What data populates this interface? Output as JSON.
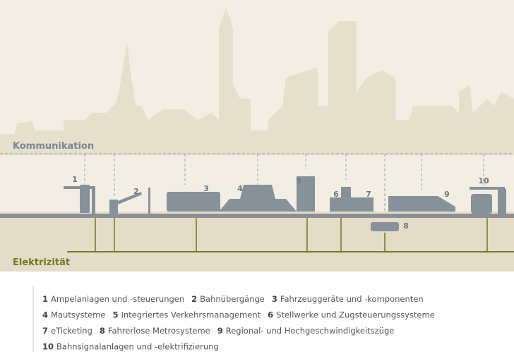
{
  "diagram": {
    "top_label": "Kommunikation",
    "bottom_label": "Elektrizität",
    "markers": [
      1,
      2,
      3,
      4,
      5,
      6,
      7,
      8,
      9,
      10
    ]
  },
  "legend": [
    [
      {
        "number": 1,
        "text": "Ampelanlagen und -steuerungen"
      },
      {
        "number": 2,
        "text": "Bahnübergänge"
      },
      {
        "number": 3,
        "text": "Fahrzeuggeräte und -komponenten"
      }
    ],
    [
      {
        "number": 4,
        "text": "Mautsysteme"
      },
      {
        "number": 5,
        "text": "Integriertes Verkehrsmanagement"
      },
      {
        "number": 6,
        "text": "Stellwerke und Zugsteuerungssysteme"
      }
    ],
    [
      {
        "number": 7,
        "text": "eTicketing"
      },
      {
        "number": 8,
        "text": "Fahrerlose Metrosysteme"
      },
      {
        "number": 9,
        "text": "Regional- und Hochgeschwindigkeitszüge"
      }
    ],
    [
      {
        "number": 10,
        "text": "Bahnsignalanlagen und -elektrifizierung"
      }
    ]
  ]
}
